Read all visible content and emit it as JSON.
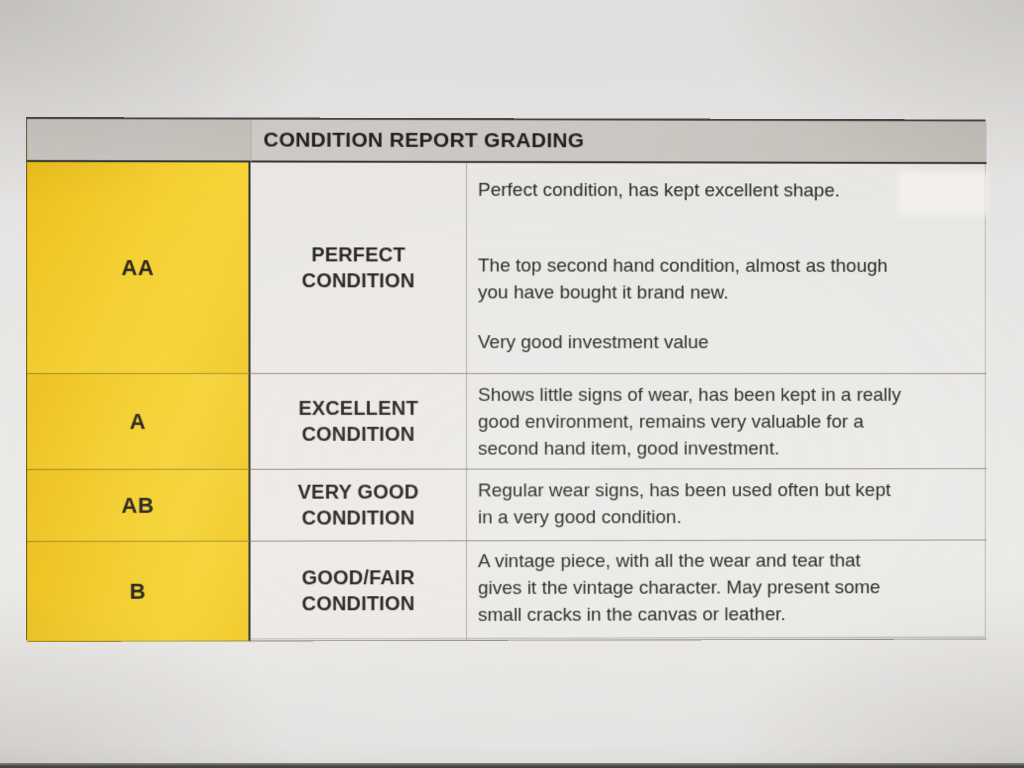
{
  "document": {
    "title": "CONDITION REPORT GRADING",
    "rows": [
      {
        "grade": "AA",
        "label": "PERFECT\nCONDITION",
        "descriptions": [
          "Perfect condition, has kept excellent shape.",
          "The top second hand condition, almost as though\nyou have bought it brand new.",
          "Very good investment value"
        ]
      },
      {
        "grade": "A",
        "label": "EXCELLENT\nCONDITION",
        "descriptions": [
          "Shows little signs of wear, has been kept in a really\ngood environment, remains very valuable for a\nsecond hand item, good investment."
        ]
      },
      {
        "grade": "AB",
        "label": "VERY GOOD\nCONDITION",
        "descriptions": [
          "Regular wear signs, has been used often but kept\nin a very good condition."
        ]
      },
      {
        "grade": "B",
        "label": "GOOD/FAIR\nCONDITION",
        "descriptions": [
          "A vintage piece, with all the wear and tear that\ngives it the vintage character. May present some\nsmall cracks in the canvas or leather."
        ]
      }
    ],
    "colors": {
      "grade_column_yellow": "#f2ca28",
      "header_gray": "#c9c5c0",
      "paper": "#e8e6e4",
      "text": "#22201c"
    }
  }
}
